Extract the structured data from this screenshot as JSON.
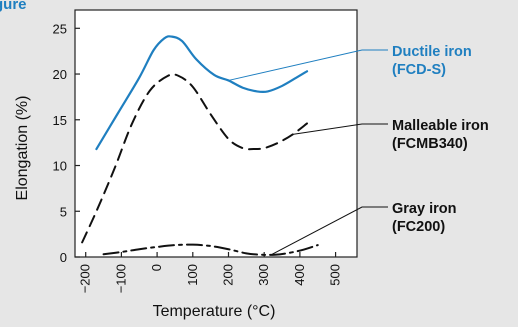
{
  "header": {
    "partial_title": "gure"
  },
  "chart_data": {
    "type": "line",
    "xlabel": "Temperature (°C)",
    "ylabel": "Elongation (%)",
    "xlim": [
      -230,
      560
    ],
    "ylim": [
      0,
      27
    ],
    "x_ticks": [
      "−200",
      "−100",
      "0",
      "100",
      "200",
      "300",
      "400",
      "500"
    ],
    "x_tick_values": [
      -200,
      -100,
      0,
      100,
      200,
      300,
      400,
      500
    ],
    "y_ticks": [
      "0",
      "5",
      "10",
      "15",
      "20",
      "25"
    ],
    "y_tick_values": [
      0,
      5,
      10,
      15,
      20,
      25
    ],
    "grid": false,
    "series": [
      {
        "name": "Ductile iron (FCD-S)",
        "label_lines": [
          "Ductile iron",
          "(FCD-S)"
        ],
        "color": "#1f7fc0",
        "style": "solid",
        "label_anchor_x": 200,
        "x": [
          -170,
          -110,
          -50,
          -10,
          20,
          40,
          70,
          110,
          160,
          200,
          240,
          280,
          310,
          350,
          390,
          420
        ],
        "y": [
          11.8,
          15.7,
          19.6,
          22.6,
          23.9,
          24.1,
          23.6,
          21.6,
          19.9,
          19.3,
          18.5,
          18.1,
          18.1,
          18.7,
          19.6,
          20.3
        ]
      },
      {
        "name": "Malleable iron (FCMB340)",
        "label_lines": [
          "Malleable iron",
          "(FCMB340)"
        ],
        "color": "#111111",
        "style": "dashed",
        "label_anchor_x": 380,
        "x": [
          -210,
          -170,
          -120,
          -70,
          -20,
          30,
          60,
          100,
          150,
          200,
          240,
          270,
          300,
          340,
          380,
          420
        ],
        "y": [
          1.6,
          5.0,
          9.6,
          14.6,
          18.2,
          19.8,
          19.8,
          18.6,
          15.6,
          12.9,
          11.9,
          11.8,
          11.9,
          12.5,
          13.4,
          14.6
        ]
      },
      {
        "name": "Gray iron (FC200)",
        "label_lines": [
          "Gray iron",
          "(FC200)"
        ],
        "color": "#111111",
        "style": "dashdot",
        "label_anchor_x": 320,
        "x": [
          -150,
          -100,
          -50,
          0,
          50,
          100,
          150,
          200,
          250,
          290,
          330,
          370,
          410,
          450
        ],
        "y": [
          0.3,
          0.55,
          0.85,
          1.1,
          1.3,
          1.35,
          1.2,
          0.85,
          0.4,
          0.25,
          0.25,
          0.45,
          0.8,
          1.3
        ]
      }
    ]
  }
}
